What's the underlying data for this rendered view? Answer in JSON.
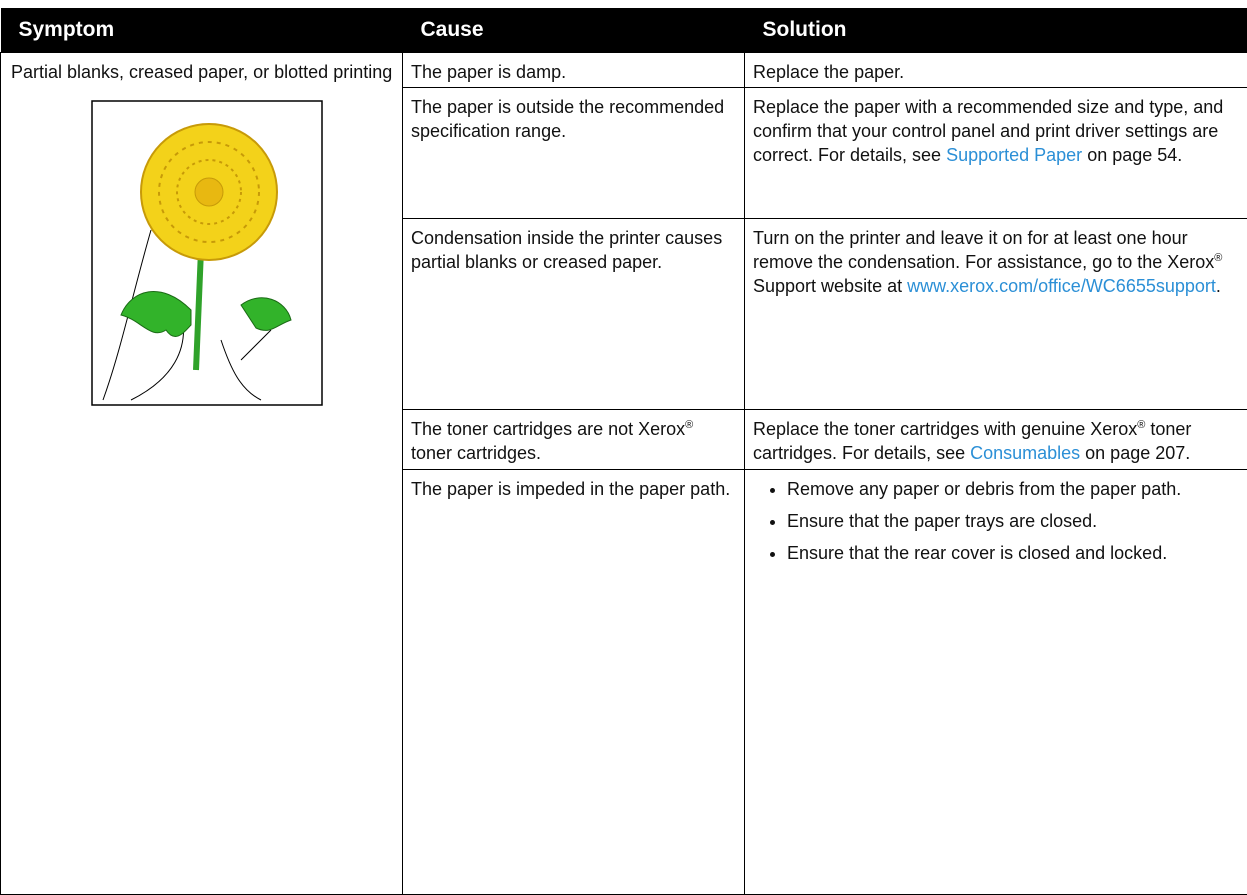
{
  "table": {
    "headers": [
      "Symptom",
      "Cause",
      "Solution"
    ],
    "symptom": "Partial blanks, creased paper, or blotted printing",
    "rows": [
      {
        "cause": [
          "The paper is damp."
        ],
        "solution": [
          "Replace the paper."
        ]
      },
      {
        "cause": [
          "The paper is outside the recommended specification range."
        ],
        "solution": [
          "Replace the paper with a recommended size and type, and confirm that your control panel and print driver settings are correct. For details, see ",
          "Supported Paper",
          " on page 54."
        ]
      },
      {
        "cause": [
          "Condensation inside the printer causes partial blanks or creased paper."
        ],
        "solution": [
          "Turn on the printer and leave it on for at least one hour remove the condensation. For assistance, go to the Xerox",
          "®",
          " Support website at ",
          "www.xerox.com/office/WC6655support",
          "."
        ]
      },
      {
        "cause": [
          "The toner cartridges are not Xerox",
          "®",
          " toner cartridges."
        ],
        "solution": [
          "Replace the toner cartridges with genuine Xerox",
          "®",
          " toner cartridges. For details, see ",
          "Consumables",
          " on page 207."
        ]
      },
      {
        "cause": [
          "The paper is impeded in the paper path."
        ],
        "bullets": [
          "Remove any paper or debris from the paper path.",
          "Ensure that the paper trays are closed.",
          "Ensure that the rear cover is closed and locked."
        ]
      }
    ]
  }
}
